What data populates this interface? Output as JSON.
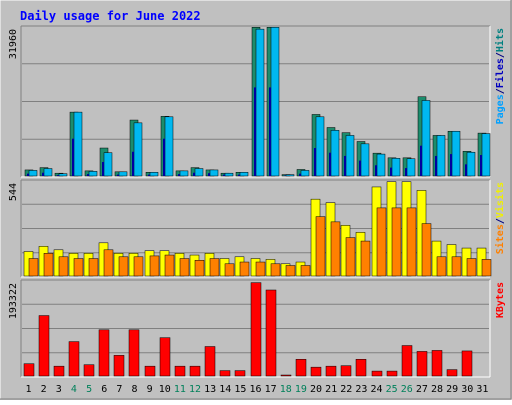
{
  "chart_data": {
    "type": "bar",
    "title": "Daily usage for June 2022",
    "categories": [
      "1",
      "2",
      "3",
      "4",
      "5",
      "6",
      "7",
      "8",
      "9",
      "10",
      "11",
      "12",
      "13",
      "14",
      "15",
      "16",
      "17",
      "18",
      "19",
      "20",
      "21",
      "22",
      "23",
      "24",
      "25",
      "26",
      "27",
      "28",
      "29",
      "30",
      "31"
    ],
    "weekend_days": [
      4,
      5,
      11,
      12,
      18,
      19,
      25,
      26
    ],
    "panels": [
      {
        "id": "hits-files-pages",
        "ymax_label": "31960",
        "ymax": 31960,
        "right_labels": [
          {
            "text": "Pages",
            "color": "#00a0ff"
          },
          {
            "text": "/",
            "color": "#000080"
          },
          {
            "text": "Files",
            "color": "#0000c0"
          },
          {
            "text": "/",
            "color": "#000080"
          },
          {
            "text": "Hits",
            "color": "#008080"
          }
        ],
        "series": [
          {
            "name": "Hits",
            "color": "#1c8c6c",
            "values": [
              1300,
              1800,
              600,
              13700,
              1100,
              6000,
              900,
              12000,
              800,
              12800,
              1100,
              1800,
              1300,
              600,
              800,
              31900,
              31900,
              300,
              1400,
              13200,
              10400,
              9300,
              7400,
              4900,
              3900,
              3900,
              17000,
              8700,
              9600,
              5300,
              9200
            ]
          },
          {
            "name": "Files",
            "color": "#00b8f0",
            "values": [
              1200,
              1600,
              500,
              13700,
              1000,
              5000,
              900,
              11400,
              800,
              12700,
              1100,
              1600,
              1300,
              600,
              800,
              31500,
              31900,
              300,
              1200,
              12700,
              9800,
              8700,
              6900,
              4700,
              3800,
              3700,
              16200,
              8700,
              9600,
              5100,
              9100
            ]
          },
          {
            "name": "Pages",
            "color": "#0000a0",
            "values": [
              500,
              700,
              200,
              8000,
              400,
              3000,
              300,
              5200,
              300,
              8000,
              400,
              700,
              600,
              300,
              300,
              19000,
              19000,
              100,
              500,
              6000,
              5000,
              4300,
              3300,
              2300,
              1800,
              1700,
              6500,
              4300,
              4700,
              2500,
              4500
            ]
          }
        ]
      },
      {
        "id": "visits-sites",
        "ymax_label": "544",
        "ymax": 544,
        "right_labels": [
          {
            "text": "Sites",
            "color": "#ff8000"
          },
          {
            "text": "/",
            "color": "#000080"
          },
          {
            "text": "Visits",
            "color": "#f0f000"
          }
        ],
        "series": [
          {
            "name": "Visits",
            "color": "#ffff00",
            "values": [
              140,
              170,
              150,
              130,
              130,
              190,
              130,
              130,
              145,
              145,
              130,
              120,
              130,
              100,
              110,
              100,
              95,
              70,
              80,
              440,
              420,
              290,
              250,
              510,
              540,
              540,
              490,
              200,
              180,
              160,
              160
            ]
          },
          {
            "name": "Sites",
            "color": "#ff8000",
            "values": [
              100,
              130,
              110,
              100,
              100,
              150,
              110,
              110,
              115,
              120,
              100,
              90,
              100,
              70,
              80,
              80,
              70,
              60,
              60,
              340,
              310,
              220,
              200,
              390,
              390,
              390,
              300,
              110,
              110,
              100,
              95
            ]
          }
        ]
      },
      {
        "id": "kbytes",
        "ymax_label": "193322",
        "ymax": 193322,
        "right_labels": [
          {
            "text": "KBytes",
            "color": "#ff0000"
          }
        ],
        "series": [
          {
            "name": "KBytes",
            "color": "#ff0000",
            "values": [
              25000,
              123000,
              20000,
              70000,
              23000,
              94000,
              42000,
              94000,
              20000,
              78000,
              20000,
              20000,
              60000,
              11000,
              11000,
              190000,
              175000,
              2000,
              34000,
              18000,
              20000,
              21000,
              34000,
              10000,
              10000,
              62000,
              50000,
              52000,
              13000,
              51000,
              0
            ]
          }
        ]
      }
    ]
  }
}
